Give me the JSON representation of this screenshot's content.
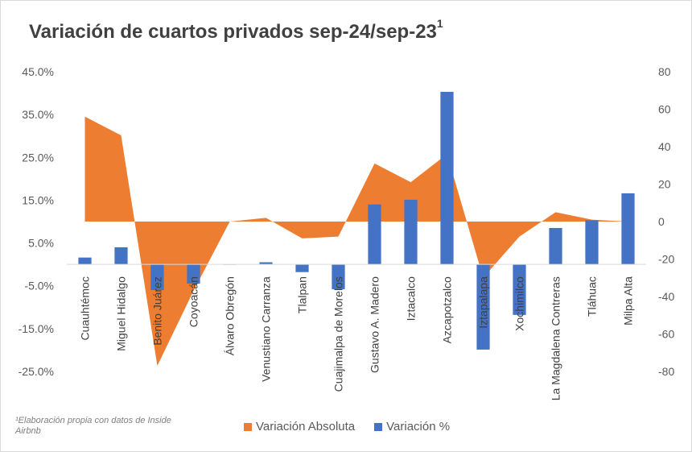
{
  "chart_data": {
    "type": "bar",
    "title": "Variación de cuartos privados sep-24/sep-23",
    "title_superscript": "1",
    "categories": [
      "Cuauhtémoc",
      "Miguel Hidalgo",
      "Benito Juárez",
      "Coyoacán",
      "Álvaro Obregón",
      "Venustiano Carranza",
      "Tlalpan",
      "Cuajimalpa de Morelos",
      "Gustavo A. Madero",
      "Iztacalco",
      "Azcapotzalco",
      "Iztapalapa",
      "Xochimilco",
      "La Magdalena Contreras",
      "Tláhuac",
      "Milpa Alta"
    ],
    "series": [
      {
        "name": "Variación Absoluta",
        "kind": "area",
        "axis": "right",
        "color": "#ED7D31",
        "values": [
          56,
          46,
          -77,
          -37,
          0,
          2,
          -9,
          -8,
          31,
          21,
          36,
          -30,
          -8,
          5,
          1,
          0
        ]
      },
      {
        "name": "Variación %",
        "kind": "bar",
        "axis": "left",
        "color": "#4472C4",
        "values": [
          0.016,
          0.04,
          -0.06,
          -0.045,
          0.0,
          0.005,
          -0.018,
          -0.058,
          0.14,
          0.151,
          0.403,
          -0.199,
          -0.118,
          0.085,
          0.103,
          0.166
        ]
      }
    ],
    "y_left": {
      "min": -0.25,
      "max": 0.45,
      "step": 0.1,
      "ticks": [
        "45.0%",
        "35.0%",
        "25.0%",
        "15.0%",
        "5.0%",
        "-5.0%",
        "-15.0%",
        "-25.0%"
      ]
    },
    "y_right": {
      "min": -80,
      "max": 80,
      "step": 20,
      "ticks": [
        "80",
        "60",
        "40",
        "20",
        "0",
        "-20",
        "-40",
        "-60",
        "-80"
      ]
    },
    "grid": false,
    "legend_position": "bottom"
  },
  "footnote": "¹Elaboración propia con datos de Inside Airbnb",
  "legend": {
    "absolute": "Variación Absoluta",
    "percent": "Variación %"
  }
}
